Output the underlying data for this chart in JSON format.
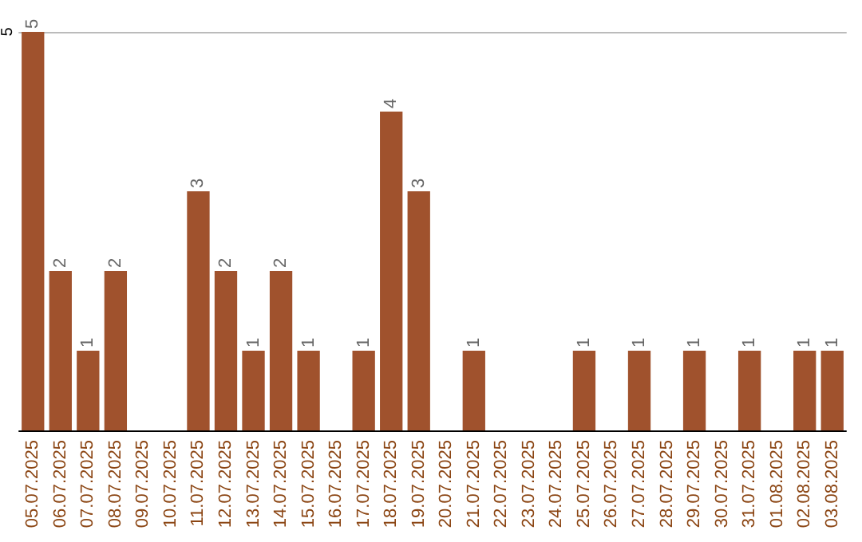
{
  "chart_data": {
    "type": "bar",
    "categories": [
      "05.07.2025",
      "06.07.2025",
      "07.07.2025",
      "08.07.2025",
      "09.07.2025",
      "10.07.2025",
      "11.07.2025",
      "12.07.2025",
      "13.07.2025",
      "14.07.2025",
      "15.07.2025",
      "16.07.2025",
      "17.07.2025",
      "18.07.2025",
      "19.07.2025",
      "20.07.2025",
      "21.07.2025",
      "22.07.2025",
      "23.07.2025",
      "24.07.2025",
      "25.07.2025",
      "26.07.2025",
      "27.07.2025",
      "28.07.2025",
      "29.07.2025",
      "30.07.2025",
      "31.07.2025",
      "01.08.2025",
      "02.08.2025",
      "03.08.2025"
    ],
    "values": [
      5,
      2,
      1,
      2,
      0,
      0,
      3,
      2,
      1,
      2,
      1,
      0,
      1,
      4,
      3,
      0,
      1,
      0,
      0,
      0,
      1,
      0,
      1,
      0,
      1,
      0,
      1,
      0,
      1,
      1
    ],
    "value_labels": [
      "5",
      "2",
      "1",
      "2",
      null,
      null,
      "3",
      "2",
      "1",
      "2",
      "1",
      null,
      "1",
      "4",
      "3",
      null,
      "1",
      null,
      null,
      null,
      "1",
      null,
      "1",
      null,
      "1",
      null,
      "1",
      null,
      "1",
      "1"
    ],
    "color": "#a0522d",
    "ylim": [
      0,
      5
    ],
    "yticks": [
      5
    ]
  }
}
